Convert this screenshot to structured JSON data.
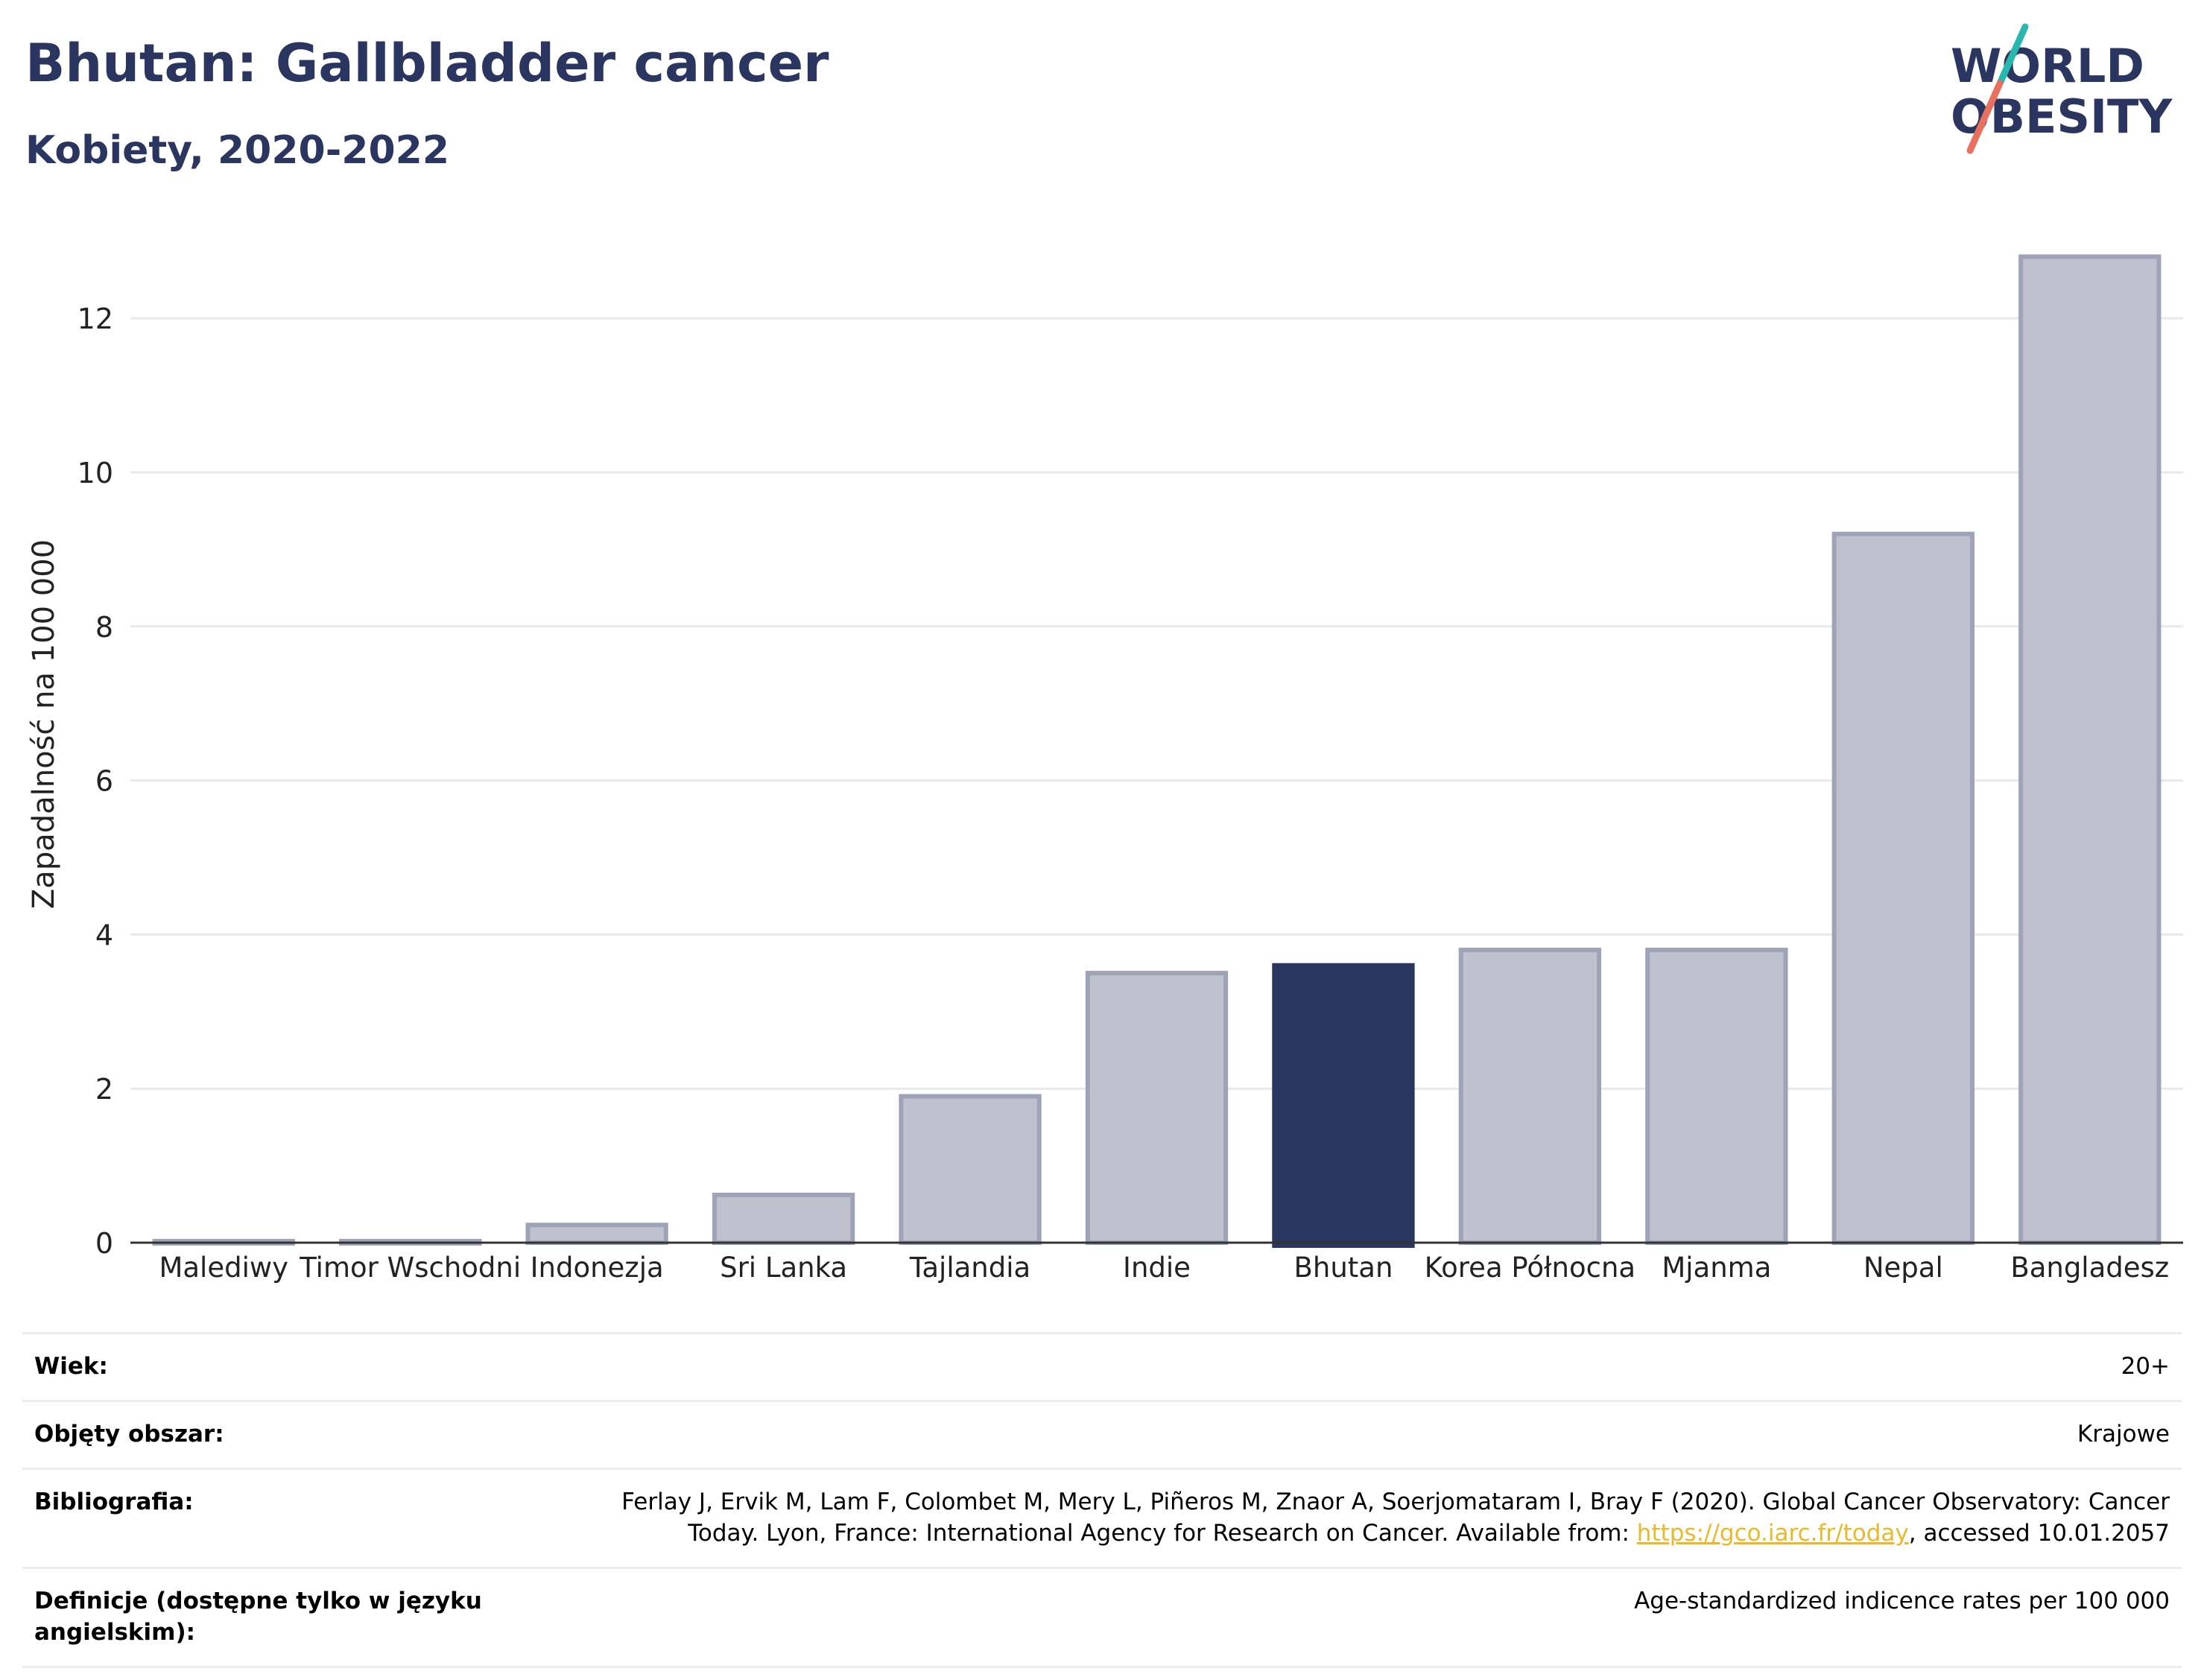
{
  "header": {
    "title": "Bhutan: Gallbladder cancer",
    "subtitle": "Kobiety, 2020-2022"
  },
  "logo": {
    "line1": "WORLD",
    "line2": "OBESITY"
  },
  "chart_data": {
    "type": "bar",
    "categories": [
      "Malediwy",
      "Timor Wschodni",
      "Indonezja",
      "Sri Lanka",
      "Tajlandia",
      "Indie",
      "Bhutan",
      "Korea Północna",
      "Mjanma",
      "Nepal",
      "Bangladesz"
    ],
    "values": [
      0.02,
      0.02,
      0.23,
      0.62,
      1.9,
      3.5,
      3.6,
      3.8,
      3.8,
      9.2,
      12.8
    ],
    "highlight": "Bhutan",
    "ylabel": "Zapadalność na 100 000",
    "xlabel": "",
    "ylim": [
      0,
      13
    ],
    "yticks": [
      0,
      2,
      4,
      6,
      8,
      10,
      12
    ],
    "grid": true,
    "colors": {
      "highlight": "#2a3560",
      "bar": "#bfc2ce",
      "bar_stroke": "#9ea3b8"
    }
  },
  "meta": {
    "age_label": "Wiek:",
    "age_value": "20+",
    "coverage_label": "Objęty obszar:",
    "coverage_value": "Krajowe",
    "bibliography_label": "Bibliografia:",
    "bibliography_line1": "Ferlay J, Ervik M, Lam F, Colombet M, Mery L, Piñeros M, Znaor A, Soerjomataram I, Bray F (2020). Global Cancer Observatory: Cancer",
    "bibliography_line2_pre": "Today. Lyon, France: International Agency for Research on Cancer. Available from: ",
    "bibliography_link": "https://gco.iarc.fr/today",
    "bibliography_line2_post": ", accessed 10.01.2057",
    "definitions_label": "Definicje (dostępne tylko w języku angielskim):",
    "definitions_value": "Age-standardized indicence rates per 100 000"
  }
}
